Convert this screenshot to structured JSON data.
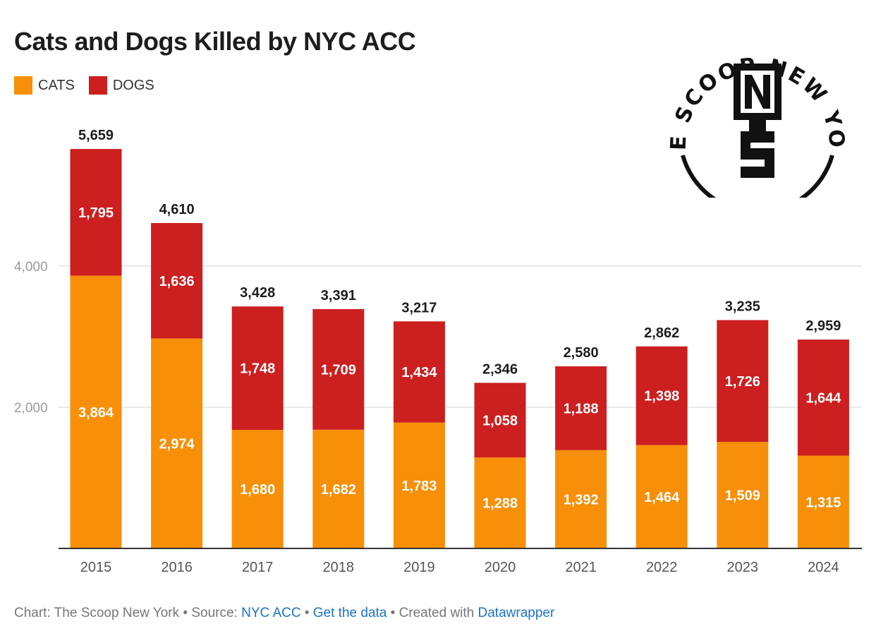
{
  "title": "Cats and Dogs Killed by NYC ACC",
  "legend": {
    "cats": "CATS",
    "dogs": "DOGS"
  },
  "colors": {
    "cats": "#f78f08",
    "dogs": "#cc1f1f",
    "grid": "#e4e4e4",
    "axis": "#333333"
  },
  "logo": {
    "text": "THE SCOOP NEW YORK",
    "monogram": "NYS"
  },
  "footer": {
    "prefix": "Chart: The Scoop New York • Source: ",
    "source_link": "NYC ACC",
    "sep1": " • ",
    "data_link": "Get the data",
    "sep2": " • Created with ",
    "tool_link": "Datawrapper"
  },
  "chart_data": {
    "type": "bar",
    "stacked": true,
    "title": "Cats and Dogs Killed by NYC ACC",
    "categories": [
      "2015",
      "2016",
      "2017",
      "2018",
      "2019",
      "2020",
      "2021",
      "2022",
      "2023",
      "2024"
    ],
    "series": [
      {
        "name": "CATS",
        "values": [
          3864,
          2974,
          1680,
          1682,
          1783,
          1288,
          1392,
          1464,
          1509,
          1315
        ]
      },
      {
        "name": "DOGS",
        "values": [
          1795,
          1636,
          1748,
          1709,
          1434,
          1058,
          1188,
          1398,
          1726,
          1644
        ]
      }
    ],
    "totals": [
      5659,
      4610,
      3428,
      3391,
      3217,
      2346,
      2580,
      2862,
      3235,
      2959
    ],
    "y_ticks": [
      2000,
      4000
    ],
    "y_tick_labels": [
      "2,000",
      "4,000"
    ],
    "ylim": [
      0,
      6000
    ],
    "grid": true,
    "legend_position": "top-left",
    "xlabel": "",
    "ylabel": ""
  }
}
